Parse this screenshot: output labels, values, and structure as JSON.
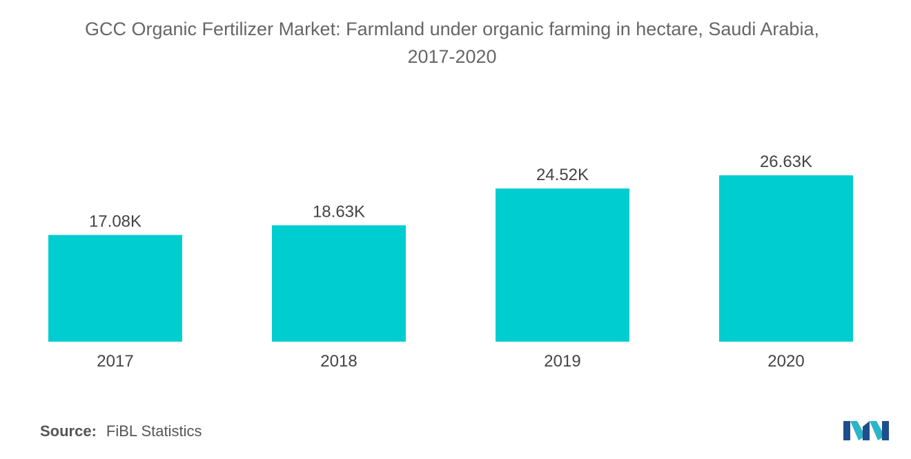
{
  "header": {
    "title_line1": "GCC Organic Fertilizer Market: Farmland under organic farming in hectare, Saudi Arabia,",
    "title_line2": "2017-2020"
  },
  "source": {
    "label": "Source:",
    "text": "FiBL Statistics"
  },
  "logo": {
    "icon": "mordor-intelligence-logo-icon",
    "colors": [
      "#1f4e8c",
      "#2bb5c8"
    ]
  },
  "colors": {
    "bar": "#00CDD0",
    "text": "#555555"
  },
  "chart_data": {
    "type": "bar",
    "categories": [
      "2017",
      "2018",
      "2019",
      "2020"
    ],
    "values": [
      17.08,
      18.63,
      24.52,
      26.63
    ],
    "data_labels": [
      "17.08K",
      "18.63K",
      "24.52K",
      "26.63K"
    ],
    "title": "GCC Organic Fertilizer Market: Farmland under organic farming in hectare, Saudi Arabia, 2017-2020",
    "xlabel": "",
    "ylabel": "",
    "ylim": [
      0,
      26.63
    ],
    "grid": false,
    "legend": "none"
  }
}
